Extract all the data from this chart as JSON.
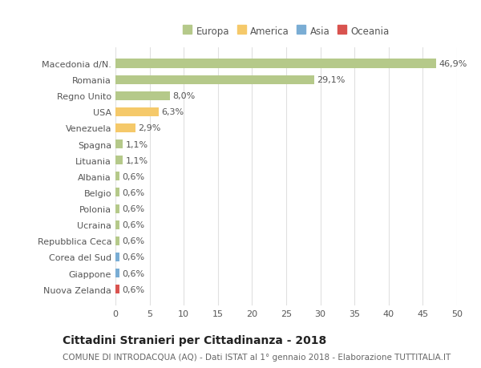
{
  "categories": [
    "Macedonia d/N.",
    "Romania",
    "Regno Unito",
    "USA",
    "Venezuela",
    "Spagna",
    "Lituania",
    "Albania",
    "Belgio",
    "Polonia",
    "Ucraina",
    "Repubblica Ceca",
    "Corea del Sud",
    "Giappone",
    "Nuova Zelanda"
  ],
  "values": [
    46.9,
    29.1,
    8.0,
    6.3,
    2.9,
    1.1,
    1.1,
    0.6,
    0.6,
    0.6,
    0.6,
    0.6,
    0.6,
    0.6,
    0.6
  ],
  "labels": [
    "46,9%",
    "29,1%",
    "8,0%",
    "6,3%",
    "2,9%",
    "1,1%",
    "1,1%",
    "0,6%",
    "0,6%",
    "0,6%",
    "0,6%",
    "0,6%",
    "0,6%",
    "0,6%",
    "0,6%"
  ],
  "colors": [
    "#b5c98a",
    "#b5c98a",
    "#b5c98a",
    "#f5c96a",
    "#f5c96a",
    "#b5c98a",
    "#b5c98a",
    "#b5c98a",
    "#b5c98a",
    "#b5c98a",
    "#b5c98a",
    "#b5c98a",
    "#7aadd4",
    "#7aadd4",
    "#d9534f"
  ],
  "legend_labels": [
    "Europa",
    "America",
    "Asia",
    "Oceania"
  ],
  "legend_colors": [
    "#b5c98a",
    "#f5c96a",
    "#7aadd4",
    "#d9534f"
  ],
  "title": "Cittadini Stranieri per Cittadinanza - 2018",
  "subtitle": "COMUNE DI INTRODACQUA (AQ) - Dati ISTAT al 1° gennaio 2018 - Elaborazione TUTTITALIA.IT",
  "xlim": [
    0,
    50
  ],
  "xticks": [
    0,
    5,
    10,
    15,
    20,
    25,
    30,
    35,
    40,
    45,
    50
  ],
  "background_color": "#ffffff",
  "grid_color": "#e0e0e0",
  "bar_height": 0.55,
  "title_fontsize": 10,
  "subtitle_fontsize": 7.5,
  "tick_fontsize": 8,
  "label_fontsize": 8,
  "legend_fontsize": 8.5
}
